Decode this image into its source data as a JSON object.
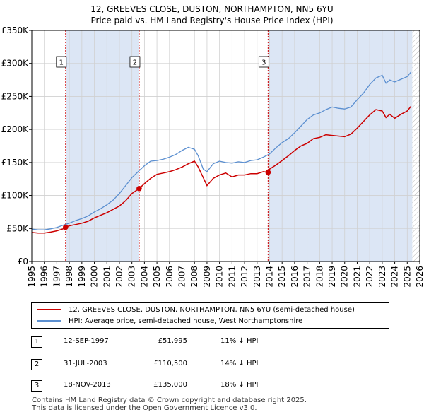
{
  "title_line1": "12, GREEVES CLOSE, DUSTON, NORTHAMPTON, NN5 6YU",
  "title_line2": "Price paid vs. HM Land Registry's House Price Index (HPI)",
  "chart_data": {
    "type": "line",
    "title": "12, GREEVES CLOSE, DUSTON, NORTHAMPTON, NN5 6YU - Price paid vs. HM Land Registry's House Price Index (HPI)",
    "xlim": [
      1995,
      2026
    ],
    "ylim": [
      0,
      350000
    ],
    "x_ticks": [
      1995,
      1996,
      1997,
      1998,
      1999,
      2000,
      2001,
      2002,
      2003,
      2004,
      2005,
      2006,
      2007,
      2008,
      2009,
      2010,
      2011,
      2012,
      2013,
      2014,
      2015,
      2016,
      2017,
      2018,
      2019,
      2020,
      2021,
      2022,
      2023,
      2024,
      2025,
      2026
    ],
    "y_ticks": [
      0,
      50000,
      100000,
      150000,
      200000,
      250000,
      300000,
      350000
    ],
    "y_tick_labels": [
      "£0",
      "£50K",
      "£100K",
      "£150K",
      "£200K",
      "£250K",
      "£300K",
      "£350K"
    ],
    "colors": {
      "property": "#cc0000",
      "hpi": "#5b8fd0",
      "shade": "#dce6f5",
      "hatch": "#bbbbbb",
      "vline": "#cc0000"
    },
    "shaded_ranges": [
      [
        1997.7,
        2003.58
      ],
      [
        2013.88,
        2025.4
      ]
    ],
    "future_start": 2025.4,
    "series": [
      {
        "name": "HPI: Average price, semi-detached house, West Northamptonshire",
        "x": [
          1995,
          1995.5,
          1996,
          1996.5,
          1997,
          1997.5,
          1998,
          1998.5,
          1999,
          1999.5,
          2000,
          2000.5,
          2001,
          2001.5,
          2002,
          2002.5,
          2003,
          2003.5,
          2004,
          2004.5,
          2005,
          2005.5,
          2006,
          2006.5,
          2007,
          2007.5,
          2008,
          2008.3,
          2008.7,
          2009,
          2009.5,
          2010,
          2010.5,
          2011,
          2011.5,
          2012,
          2012.5,
          2013,
          2013.5,
          2014,
          2014.5,
          2015,
          2015.5,
          2016,
          2016.5,
          2017,
          2017.5,
          2018,
          2018.5,
          2019,
          2019.5,
          2020,
          2020.5,
          2021,
          2021.5,
          2022,
          2022.5,
          2023,
          2023.3,
          2023.6,
          2024,
          2024.5,
          2025,
          2025.3
        ],
        "values": [
          49000,
          48000,
          48000,
          49500,
          51500,
          55000,
          58000,
          62000,
          65000,
          69000,
          75000,
          80000,
          86000,
          93000,
          103000,
          115000,
          127000,
          136000,
          145000,
          152000,
          153000,
          155000,
          158000,
          162000,
          168000,
          173000,
          170000,
          160000,
          140000,
          136000,
          148000,
          152000,
          150000,
          149000,
          151000,
          150000,
          153000,
          154000,
          158000,
          163000,
          172000,
          180000,
          186000,
          195000,
          205000,
          215000,
          222000,
          225000,
          230000,
          234000,
          232000,
          231000,
          234000,
          245000,
          255000,
          268000,
          278000,
          282000,
          270000,
          275000,
          272000,
          276000,
          280000,
          287000
        ]
      },
      {
        "name": "12, GREEVES CLOSE, DUSTON, NORTHAMPTON, NN5 6YU (semi-detached house)",
        "x": [
          1995,
          1995.5,
          1996,
          1996.5,
          1997,
          1997.5,
          1997.7,
          1998,
          1998.5,
          1999,
          1999.5,
          2000,
          2000.5,
          2001,
          2001.5,
          2002,
          2002.5,
          2003,
          2003.58,
          2004,
          2004.5,
          2005,
          2005.5,
          2006,
          2006.5,
          2007,
          2007.5,
          2008,
          2008.3,
          2008.7,
          2009,
          2009.5,
          2010,
          2010.5,
          2011,
          2011.5,
          2012,
          2012.5,
          2013,
          2013.5,
          2013.88,
          2014,
          2014.5,
          2015,
          2015.5,
          2016,
          2016.5,
          2017,
          2017.5,
          2018,
          2018.5,
          2019,
          2019.5,
          2020,
          2020.5,
          2021,
          2021.5,
          2022,
          2022.5,
          2023,
          2023.3,
          2023.6,
          2024,
          2024.5,
          2025,
          2025.3
        ],
        "values": [
          44000,
          43000,
          43000,
          44500,
          46500,
          49500,
          51995,
          54000,
          56000,
          58000,
          61000,
          66000,
          70000,
          74000,
          79000,
          84000,
          92000,
          103000,
          110500,
          118000,
          126000,
          132000,
          134000,
          136000,
          139000,
          143000,
          148000,
          152000,
          143000,
          127000,
          115000,
          126000,
          131000,
          134000,
          128000,
          131000,
          131000,
          133000,
          133000,
          136000,
          135000,
          140000,
          146000,
          153000,
          160000,
          168000,
          175000,
          179000,
          186000,
          188000,
          192000,
          191000,
          190000,
          189000,
          193000,
          202000,
          212000,
          222000,
          230000,
          228000,
          218000,
          223000,
          217000,
          223000,
          228000,
          235000
        ]
      }
    ],
    "sales": [
      {
        "num": "1",
        "x": 1997.7,
        "value": 51995
      },
      {
        "num": "2",
        "x": 2003.58,
        "value": 110500
      },
      {
        "num": "3",
        "x": 2013.88,
        "value": 135000
      }
    ]
  },
  "legend": {
    "property_label": "12, GREEVES CLOSE, DUSTON, NORTHAMPTON, NN5 6YU (semi-detached house)",
    "hpi_label": "HPI: Average price, semi-detached house, West Northamptonshire"
  },
  "annotations": [
    {
      "num": "1",
      "date": "12-SEP-1997",
      "price": "£51,995",
      "hpi": "11% ↓ HPI"
    },
    {
      "num": "2",
      "date": "31-JUL-2003",
      "price": "£110,500",
      "hpi": "14% ↓ HPI"
    },
    {
      "num": "3",
      "date": "18-NOV-2013",
      "price": "£135,000",
      "hpi": "18% ↓ HPI"
    }
  ],
  "footer_line1": "Contains HM Land Registry data © Crown copyright and database right 2025.",
  "footer_line2": "This data is licensed under the Open Government Licence v3.0."
}
